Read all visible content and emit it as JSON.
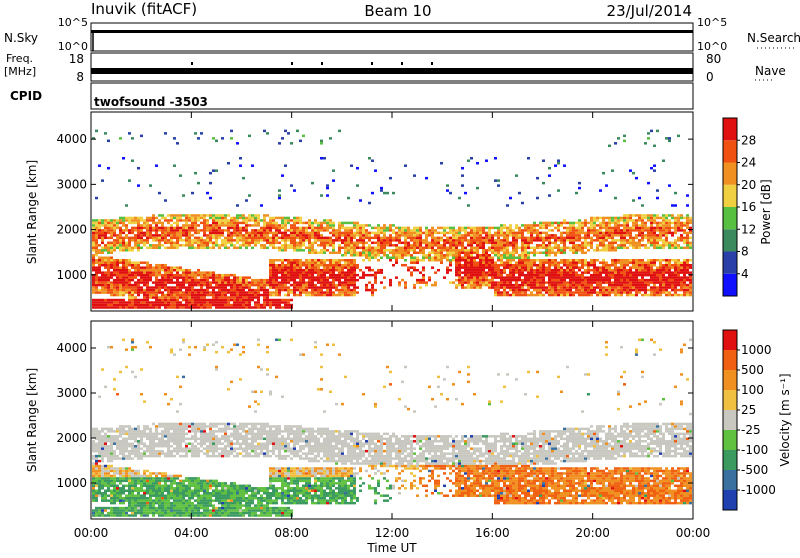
{
  "header": {
    "station": "Inuvik (fitACF)",
    "beam": "Beam 10",
    "date": "23/Jul/2014"
  },
  "top_panels": {
    "nsky_label": "N.Sky",
    "nsearch_label": "N.Search",
    "nsky_ticks": [
      "10^5",
      "10^0"
    ],
    "nsearch_ticks": [
      "10^5",
      "10^0"
    ],
    "freq_label": "Freq.",
    "freq_unit": "[MHz]",
    "freq_ticks": [
      "18",
      "8"
    ],
    "nave_label": "Nave",
    "nave_ticks": [
      "80",
      "0"
    ],
    "cpid_label": "CPID",
    "cpid_value": "twofsound -3503"
  },
  "chart_data": [
    {
      "type": "heatmap",
      "name": "power-panel",
      "ylabel": "Slant Range [km]",
      "yticks": [
        "4000",
        "3000",
        "2000",
        "1000"
      ],
      "ylim": [
        200,
        4600
      ],
      "xlim_hours": [
        0,
        24
      ],
      "colorbar": {
        "label": "Power [dB]",
        "ticks": [
          "28",
          "24",
          "20",
          "16",
          "12",
          "8",
          "4"
        ],
        "colors": [
          "#1010ff",
          "#2a40a8",
          "#3a8a5e",
          "#58c040",
          "#f0d040",
          "#f09020",
          "#f05010",
          "#e01010"
        ]
      }
    },
    {
      "type": "heatmap",
      "name": "velocity-panel",
      "ylabel": "Slant Range [km]",
      "yticks": [
        "4000",
        "3000",
        "2000",
        "1000"
      ],
      "ylim": [
        200,
        4600
      ],
      "xlim_hours": [
        0,
        24
      ],
      "colorbar": {
        "label": "Velocity [m s⁻¹]",
        "ticks": [
          "1000",
          "500",
          "100",
          "25",
          "-25",
          "-100",
          "-500",
          "-1000"
        ],
        "colors": [
          "#2040b0",
          "#3a70a0",
          "#3a9a60",
          "#60c040",
          "#c8c8c0",
          "#f0c040",
          "#f09020",
          "#f06010",
          "#e01010"
        ]
      }
    }
  ],
  "xaxis": {
    "ticks": [
      "00:00",
      "04:00",
      "08:00",
      "12:00",
      "16:00",
      "20:00",
      "00:00"
    ],
    "label": "Time UT"
  },
  "colors": {
    "trace": "#000000",
    "axis": "#000000"
  }
}
